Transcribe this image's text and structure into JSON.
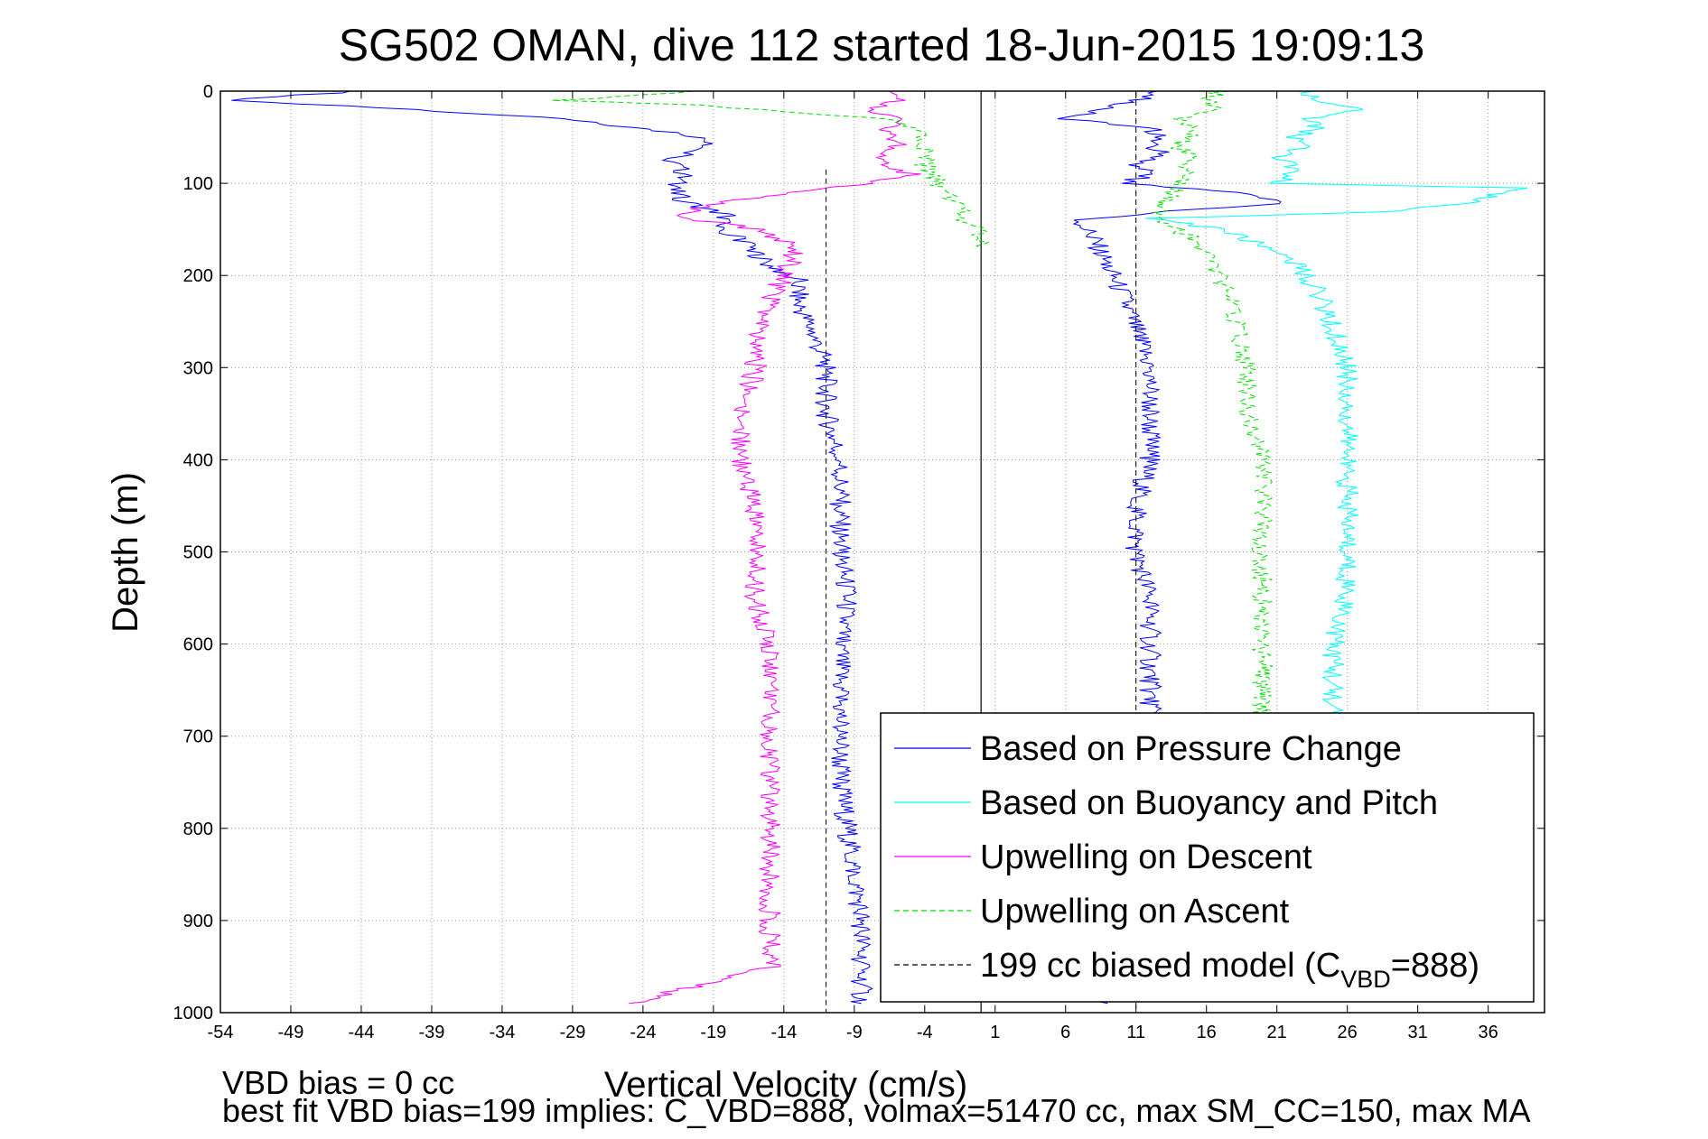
{
  "chart_data": {
    "type": "line",
    "title": "SG502 OMAN, dive 112 started 18-Jun-2015 19:09:13",
    "xlabel": "Vertical Velocity (cm/s)",
    "ylabel": "Depth (m)",
    "xlim": [
      -54,
      40
    ],
    "ylim": [
      0,
      1000
    ],
    "y_reversed": true,
    "grid": true,
    "x_ticks": [
      -54,
      -49,
      -44,
      -39,
      -34,
      -29,
      -24,
      -19,
      -14,
      -9,
      -4,
      1,
      6,
      11,
      16,
      21,
      26,
      31,
      36
    ],
    "y_ticks": [
      0,
      100,
      200,
      300,
      400,
      500,
      600,
      700,
      800,
      900,
      1000
    ],
    "reference_lines": {
      "solid_x": 0,
      "dashed_x_descent": -11,
      "dashed_x_ascent": 11
    },
    "legend_position": "bottom-right",
    "series": [
      {
        "name": "Based on Pressure Change",
        "color": "#0000ff",
        "style": "solid",
        "segments": [
          {
            "depth": [
              0,
              10,
              20,
              30,
              45,
              55,
              65,
              75,
              90,
              105,
              120,
              135,
              150,
              160,
              175,
              190,
              205,
              230,
              260,
              300,
              350,
              400,
              450,
              500,
              550,
              600,
              650,
              700,
              750,
              800,
              850,
              900,
              950,
              990
            ],
            "velocity": [
              -44,
              -54,
              -40,
              -30,
              -22,
              -19,
              -20,
              -22,
              -21,
              -22,
              -21,
              -18,
              -19,
              -17,
              -16,
              -15,
              -13,
              -13,
              -12,
              -11,
              -11,
              -10,
              -10,
              -10,
              -9.5,
              -10,
              -10,
              -10,
              -10,
              -9.5,
              -9,
              -8.5,
              -8.5,
              -8.5
            ]
          },
          {
            "depth": [
              0,
              10,
              20,
              30,
              40,
              50,
              60,
              70,
              80,
              90,
              100,
              110,
              120,
              130,
              140,
              160,
              190,
              220,
              260,
              300,
              350,
              400,
              450,
              500,
              550,
              600,
              650,
              700,
              750,
              800,
              850,
              900,
              950,
              990
            ],
            "velocity": [
              13,
              11,
              9,
              6,
              12,
              13,
              12,
              13,
              11,
              12,
              10,
              18,
              22,
              14,
              7,
              8,
              9,
              10,
              11,
              12,
              12,
              12,
              11,
              11,
              12,
              12,
              12,
              12,
              11,
              11,
              11,
              10,
              10,
              9
            ]
          }
        ]
      },
      {
        "name": "Based on Buoyancy and Pitch",
        "color": "#00ffff",
        "style": "solid",
        "segments": [
          {
            "depth": [
              0,
              10,
              20,
              30,
              40,
              50,
              60,
              70,
              80,
              90,
              100,
              105,
              120,
              130,
              138,
              150,
              180,
              220,
              260,
              300,
              350,
              400,
              450,
              500,
              550,
              600,
              650,
              700
            ],
            "velocity": [
              23,
              24,
              27,
              23,
              24,
              22,
              23,
              21,
              22,
              22,
              21,
              38,
              35,
              30,
              12,
              17,
              22,
              24,
              25,
              26,
              26,
              26,
              26,
              26,
              26,
              25,
              25,
              25
            ]
          }
        ]
      },
      {
        "name": "Upwelling on Descent",
        "color": "#ff00ff",
        "style": "solid",
        "segments": [
          {
            "depth": [
              0,
              10,
              20,
              30,
              40,
              50,
              60,
              70,
              80,
              90,
              100,
              110,
              120,
              135,
              150,
              170,
              200,
              230,
              260,
              300,
              350,
              400,
              450,
              500,
              550,
              600,
              650,
              700,
              750,
              800,
              850,
              900,
              950,
              990
            ],
            "velocity": [
              -7,
              -6,
              -8,
              -5,
              -7,
              -6,
              -6,
              -7,
              -7,
              -5,
              -8,
              -13,
              -18,
              -22,
              -16,
              -13,
              -14,
              -15,
              -16,
              -16,
              -17,
              -17,
              -16,
              -16,
              -16,
              -15,
              -15,
              -15,
              -15,
              -15,
              -15,
              -15,
              -15,
              -25
            ]
          }
        ]
      },
      {
        "name": "Upwelling on Ascent",
        "color": "#00dd00",
        "style": "dashed",
        "segments": [
          {
            "depth": [
              0,
              10,
              15,
              20,
              30,
              40,
              60,
              80,
              100,
              120,
              140,
              150,
              160,
              170
            ],
            "velocity": [
              -20,
              -30,
              -20,
              -16,
              -7,
              -5,
              -4,
              -4,
              -3,
              -2,
              -1,
              0,
              0,
              0
            ]
          },
          {
            "depth": [
              0,
              10,
              20,
              30,
              40,
              50,
              60,
              70,
              80,
              90,
              100,
              120,
              140,
              160,
              200,
              250,
              300,
              350,
              400,
              450,
              500,
              550,
              600,
              650,
              700
            ],
            "velocity": [
              17,
              16,
              17,
              14,
              15,
              15,
              14,
              15,
              14,
              15,
              14,
              13,
              13,
              15,
              17,
              18,
              19,
              19,
              20,
              20,
              20,
              20,
              20,
              20,
              20
            ]
          }
        ]
      },
      {
        "name": "199 cc biased model (C",
        "name_sub": "VBD",
        "name_tail": "=888)",
        "color": "#000000",
        "style": "dashed",
        "segments": [
          {
            "depth": [
              85,
              1000
            ],
            "velocity": [
              -11,
              -11
            ]
          },
          {
            "depth": [
              0,
              1000
            ],
            "velocity": [
              11,
              11
            ]
          }
        ]
      }
    ]
  },
  "notes": {
    "line1": "VBD bias = 0 cc",
    "line2": "best fit VBD bias=199 implies: C_VBD=888, volmax=51470 cc, max SM_CC=150, max MA"
  }
}
